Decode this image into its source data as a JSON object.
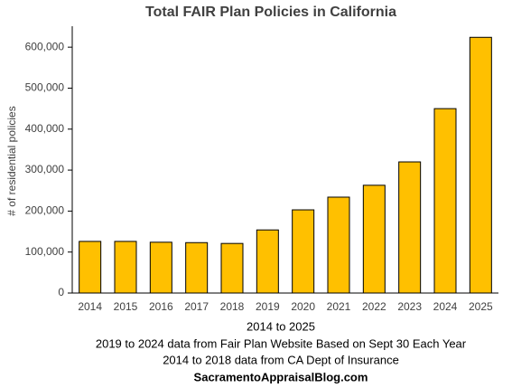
{
  "chart_data": {
    "type": "bar",
    "title": "Total FAIR Plan Policies in California",
    "y_label": "# of residential policies",
    "notes": [
      "2014 to 2025",
      "2019 to 2024 data from Fair Plan Website Based on Sept 30 Each Year",
      "2014 to 2018 data from CA Dept of Insurance",
      "SacramentoAppraisalBlog.com"
    ],
    "categories": [
      "2014",
      "2015",
      "2016",
      "2017",
      "2018",
      "2019",
      "2020",
      "2021",
      "2022",
      "2023",
      "2024",
      "2025"
    ],
    "values": [
      126000,
      126000,
      124000,
      123000,
      121000,
      154000,
      203000,
      234000,
      263000,
      320000,
      450000,
      624000
    ],
    "color": "#ffc000",
    "ylim": [
      0,
      650000
    ],
    "yticks": [
      0,
      {
        "value": 100000,
        "label": "100,000"
      },
      {
        "value": 200000,
        "label": "200,000"
      },
      {
        "value": 300000,
        "label": "300,000"
      },
      {
        "value": 400000,
        "label": "400,000"
      },
      {
        "value": 500000,
        "label": "500,000"
      },
      {
        "value": 600000,
        "label": "600,000"
      }
    ],
    "grid": false
  }
}
